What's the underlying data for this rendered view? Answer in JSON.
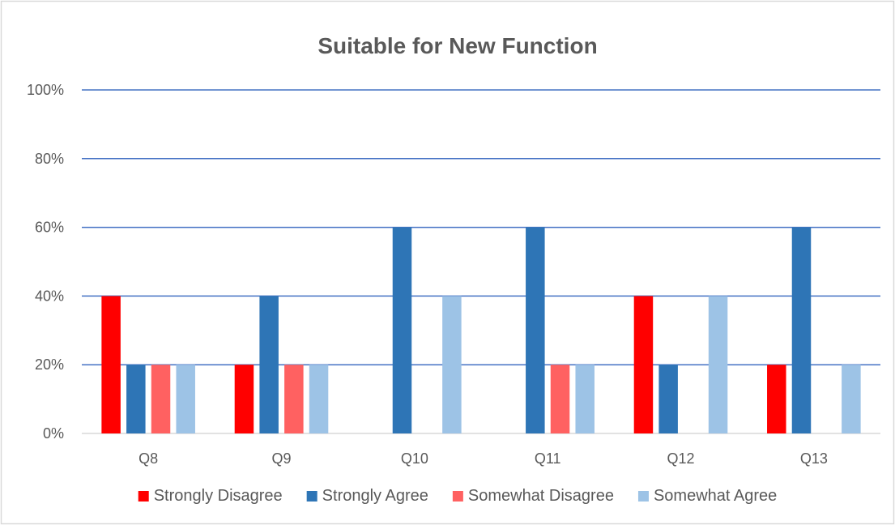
{
  "chart_data": {
    "type": "bar",
    "title": "Suitable for New Function",
    "xlabel": "",
    "ylabel": "",
    "categories": [
      "Q8",
      "Q9",
      "Q10",
      "Q11",
      "Q12",
      "Q13"
    ],
    "y_ticks": [
      "0%",
      "20%",
      "40%",
      "60%",
      "80%",
      "100%"
    ],
    "ylim": [
      0,
      100
    ],
    "grid": true,
    "legend_position": "bottom",
    "series": [
      {
        "name": "Strongly Disagree",
        "color": "#ff0000",
        "values": [
          40,
          20,
          0,
          0,
          40,
          20
        ]
      },
      {
        "name": "Strongly Agree",
        "color": "#2e75b6",
        "values": [
          20,
          40,
          60,
          60,
          20,
          60
        ]
      },
      {
        "name": "Somewhat Disagree",
        "color": "#ff6161",
        "values": [
          20,
          20,
          0,
          20,
          0,
          0
        ]
      },
      {
        "name": "Somewhat Agree",
        "color": "#9dc3e6",
        "values": [
          20,
          20,
          40,
          20,
          40,
          20
        ]
      }
    ],
    "colors": {
      "gridline": "#4472c4",
      "axis": "#d9d9d9",
      "text": "#595959",
      "frame": "#d9d9d9"
    }
  }
}
